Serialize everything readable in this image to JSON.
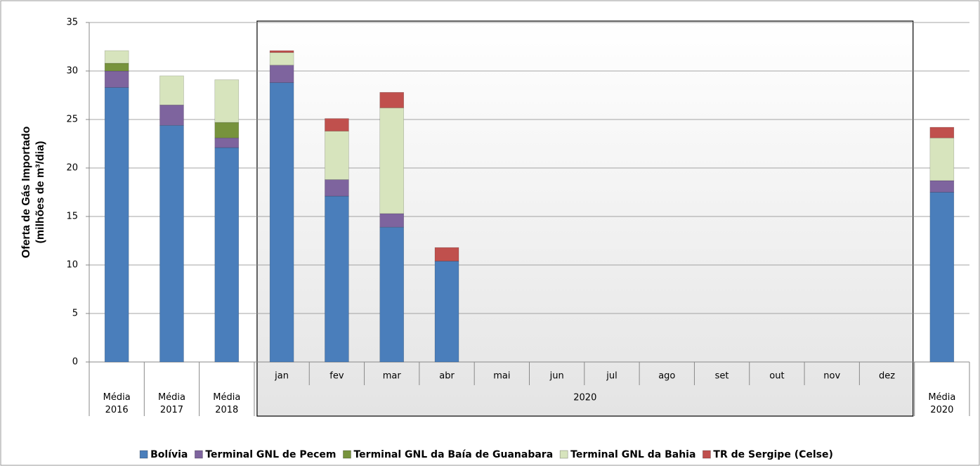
{
  "chart_data": {
    "type": "stacked-bar",
    "y_label": [
      "Oferta de Gás Importado",
      "(milhões de m³/dia)"
    ],
    "categories": [
      "Média 2016",
      "Média 2017",
      "Média 2018",
      "jan",
      "fev",
      "mar",
      "abr",
      "mai",
      "jun",
      "jul",
      "ago",
      "set",
      "out",
      "nov",
      "dez",
      "Média 2020"
    ],
    "x_groups": [
      {
        "label": "2020",
        "from": 3,
        "to": 14
      }
    ],
    "series": [
      {
        "name": "Bolívia",
        "color": "#4a7ebb",
        "values": [
          28.3,
          24.4,
          22.1,
          28.8,
          17.1,
          13.9,
          10.4,
          null,
          null,
          null,
          null,
          null,
          null,
          null,
          null,
          17.5
        ]
      },
      {
        "name": "Terminal GNL de Pecem",
        "color": "#7e649e",
        "values": [
          1.7,
          2.1,
          1.0,
          1.8,
          1.7,
          1.4,
          0,
          null,
          null,
          null,
          null,
          null,
          null,
          null,
          null,
          1.2
        ]
      },
      {
        "name": "Terminal GNL da Baía de Guanabara",
        "color": "#77933c",
        "values": [
          0.8,
          0,
          1.6,
          0,
          0,
          0,
          0,
          null,
          null,
          null,
          null,
          null,
          null,
          null,
          null,
          0
        ]
      },
      {
        "name": "Terminal GNL da Bahia",
        "color": "#d7e4bd",
        "values": [
          1.3,
          3.0,
          4.4,
          1.3,
          5.0,
          10.9,
          0,
          null,
          null,
          null,
          null,
          null,
          null,
          null,
          null,
          4.4
        ]
      },
      {
        "name": "TR de Sergipe (Celse)",
        "color": "#c0504d",
        "values": [
          0,
          0,
          0,
          0.2,
          1.3,
          1.6,
          1.4,
          null,
          null,
          null,
          null,
          null,
          null,
          null,
          null,
          1.1
        ]
      }
    ],
    "ylim": [
      0,
      35
    ],
    "yticks": [
      0,
      5,
      10,
      15,
      20,
      25,
      30,
      35
    ],
    "grid": true,
    "legend": "bottom"
  }
}
